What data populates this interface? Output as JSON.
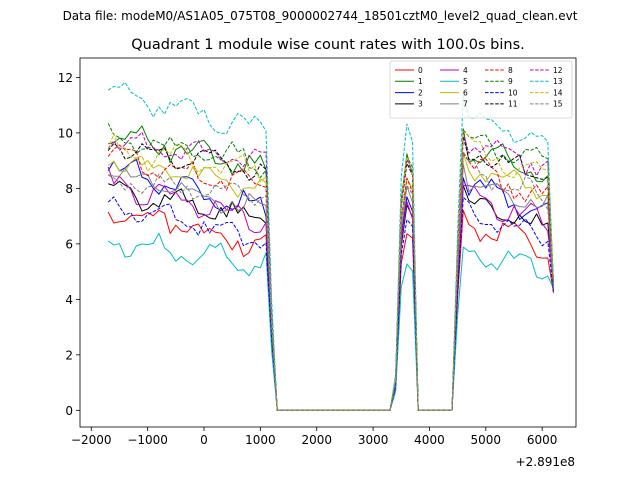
{
  "chart_data": {
    "type": "line",
    "suptitle": "Data file: modeM0/AS1A05_075T08_9000002744_18501cztM0_level2_quad_clean.evt",
    "title": "Quadrant 1 module wise count rates with 100.0s bins.",
    "xlabel": "",
    "ylabel": "",
    "offset_text": "+2.891e8",
    "xlim": [
      -2200,
      6600
    ],
    "ylim": [
      -0.6,
      12.7
    ],
    "x_ticks": [
      -2000,
      -1000,
      0,
      1000,
      2000,
      3000,
      4000,
      5000,
      6000
    ],
    "x_tick_labels": [
      "−2000",
      "−1000",
      "0",
      "1000",
      "2000",
      "3000",
      "4000",
      "5000",
      "6000"
    ],
    "y_ticks": [
      0,
      2,
      4,
      6,
      8,
      10,
      12
    ],
    "y_tick_labels": [
      "0",
      "2",
      "4",
      "6",
      "8",
      "10",
      "12"
    ],
    "legend_position": "upper-right",
    "legend_columns": 4,
    "series": [
      {
        "name": "0",
        "color": "#ff0000",
        "dash": "solid",
        "base": 7.3,
        "slope": -1.4,
        "late": 6.8,
        "lateSlope": -0.9,
        "amp": 0.35,
        "ph": 0.7
      },
      {
        "name": "1",
        "color": "#008000",
        "dash": "solid",
        "base": 10.0,
        "slope": -1.3,
        "late": 9.6,
        "lateSlope": -1.1,
        "amp": 0.3,
        "ph": 1.9
      },
      {
        "name": "2",
        "color": "#0000ff",
        "dash": "solid",
        "base": 8.8,
        "slope": -1.6,
        "late": 8.1,
        "lateSlope": -1.0,
        "amp": 0.35,
        "ph": 3.1
      },
      {
        "name": "3",
        "color": "#000000",
        "dash": "solid",
        "base": 7.9,
        "slope": -1.0,
        "late": 7.6,
        "lateSlope": -1.0,
        "amp": 0.3,
        "ph": 4.2
      },
      {
        "name": "4",
        "color": "#bf00bf",
        "dash": "solid",
        "base": 8.2,
        "slope": -1.4,
        "late": 7.8,
        "lateSlope": -1.0,
        "amp": 0.3,
        "ph": 5.3
      },
      {
        "name": "5",
        "color": "#00bfbf",
        "dash": "solid",
        "base": 6.1,
        "slope": -0.8,
        "late": 5.7,
        "lateSlope": -0.6,
        "amp": 0.3,
        "ph": 0.2
      },
      {
        "name": "6",
        "color": "#bfbf00",
        "dash": "solid",
        "base": 9.1,
        "slope": -1.2,
        "late": 8.8,
        "lateSlope": -0.9,
        "amp": 0.3,
        "ph": 1.4
      },
      {
        "name": "7",
        "color": "#808080",
        "dash": "solid",
        "base": 8.6,
        "slope": -1.4,
        "late": 8.3,
        "lateSlope": -0.9,
        "amp": 0.3,
        "ph": 2.6
      },
      {
        "name": "8",
        "color": "#ff0000",
        "dash": "dashed",
        "base": 9.2,
        "slope": -1.2,
        "late": 8.8,
        "lateSlope": -1.2,
        "amp": 0.35,
        "ph": 3.7
      },
      {
        "name": "9",
        "color": "#008000",
        "dash": "dashed",
        "base": 9.9,
        "slope": -1.0,
        "late": 9.8,
        "lateSlope": -0.9,
        "amp": 0.3,
        "ph": 4.8
      },
      {
        "name": "10",
        "color": "#0000ff",
        "dash": "dashed",
        "base": 7.5,
        "slope": -1.4,
        "late": 7.2,
        "lateSlope": -1.1,
        "amp": 0.3,
        "ph": 5.9
      },
      {
        "name": "11",
        "color": "#000000",
        "dash": "dashed",
        "base": 9.7,
        "slope": -1.2,
        "late": 9.4,
        "lateSlope": -0.9,
        "amp": 0.3,
        "ph": 0.9
      },
      {
        "name": "12",
        "color": "#bf00bf",
        "dash": "dashed",
        "base": 9.8,
        "slope": -0.9,
        "late": 9.6,
        "lateSlope": -0.8,
        "amp": 0.3,
        "ph": 2.1
      },
      {
        "name": "13",
        "color": "#00bfbf",
        "dash": "dashed",
        "base": 11.4,
        "slope": -1.3,
        "late": 10.8,
        "lateSlope": -1.2,
        "amp": 0.3,
        "ph": 3.3
      },
      {
        "name": "14",
        "color": "#bfbf00",
        "dash": "dashed",
        "base": 9.4,
        "slope": -0.8,
        "late": 9.5,
        "lateSlope": -1.2,
        "amp": 0.35,
        "ph": 4.4
      },
      {
        "name": "15",
        "color": "#808080",
        "dash": "dashed",
        "base": 8.4,
        "slope": -0.7,
        "late": 8.7,
        "lateSlope": -1.1,
        "amp": 0.3,
        "ph": 5.5
      }
    ]
  }
}
